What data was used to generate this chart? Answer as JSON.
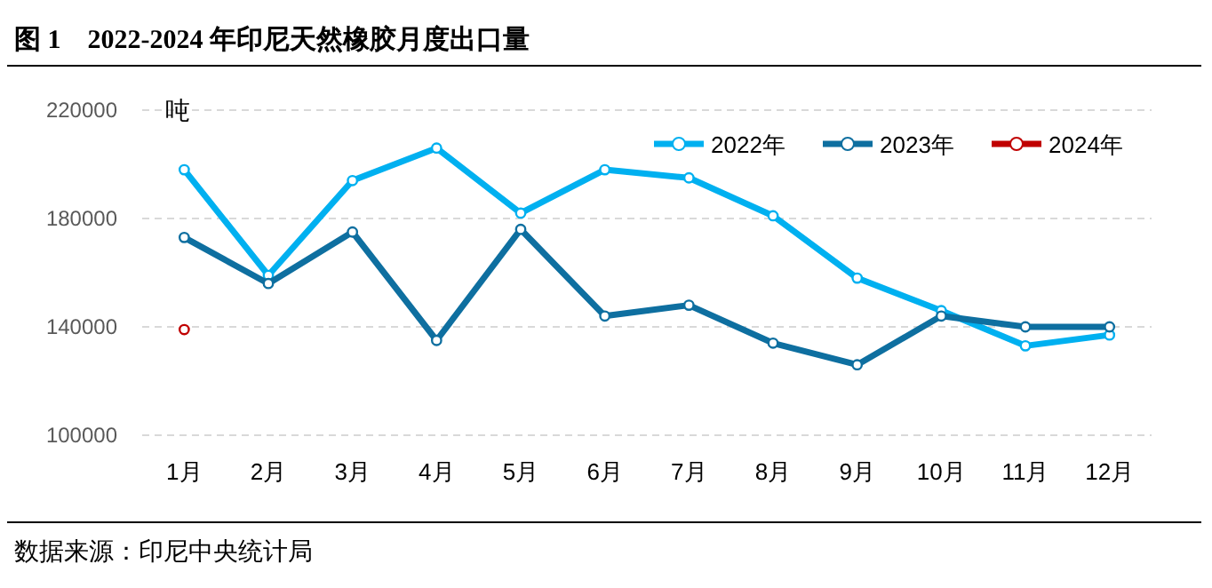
{
  "chart_data": {
    "type": "line",
    "title": "图 1　2022-2024 年印尼天然橡胶月度出口量",
    "ylabel": "吨",
    "annotations": [
      "数据来源：印尼中央统计局"
    ],
    "categories": [
      "1月",
      "2月",
      "3月",
      "4月",
      "5月",
      "6月",
      "7月",
      "8月",
      "9月",
      "10月",
      "11月",
      "12月"
    ],
    "series": [
      {
        "name": "2022年",
        "color": "#00b0f0",
        "values": [
          198000,
          159000,
          194000,
          206000,
          182000,
          198000,
          195000,
          181000,
          158000,
          146000,
          133000,
          137000
        ]
      },
      {
        "name": "2023年",
        "color": "#0e6fa0",
        "values": [
          173000,
          156000,
          175000,
          135000,
          176000,
          144000,
          148000,
          134000,
          126000,
          144000,
          140000,
          140000
        ]
      },
      {
        "name": "2024年",
        "color": "#c00000",
        "values": [
          139000,
          null,
          null,
          null,
          null,
          null,
          null,
          null,
          null,
          null,
          null,
          null
        ]
      }
    ],
    "ylim": [
      100000,
      220000
    ],
    "yticks": [
      100000,
      140000,
      180000,
      220000
    ],
    "grid": "y",
    "legend": "top right",
    "marker": "circle",
    "line_style": "solid"
  }
}
